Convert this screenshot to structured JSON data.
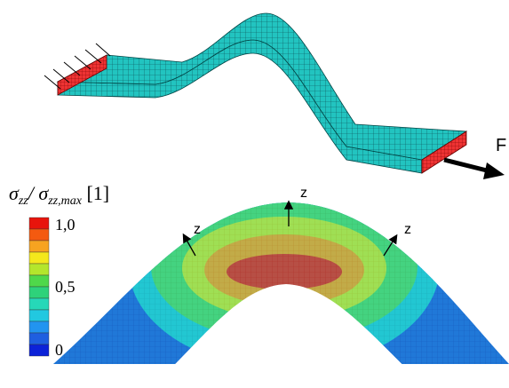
{
  "force_label": "F",
  "legend": {
    "title": [
      "σ",
      "zz",
      "/ σ",
      "zz,max",
      " [1]"
    ],
    "labels": [
      "1,0",
      "0,5",
      "0"
    ]
  },
  "axis_labels": [
    "z",
    "z",
    "z"
  ]
}
